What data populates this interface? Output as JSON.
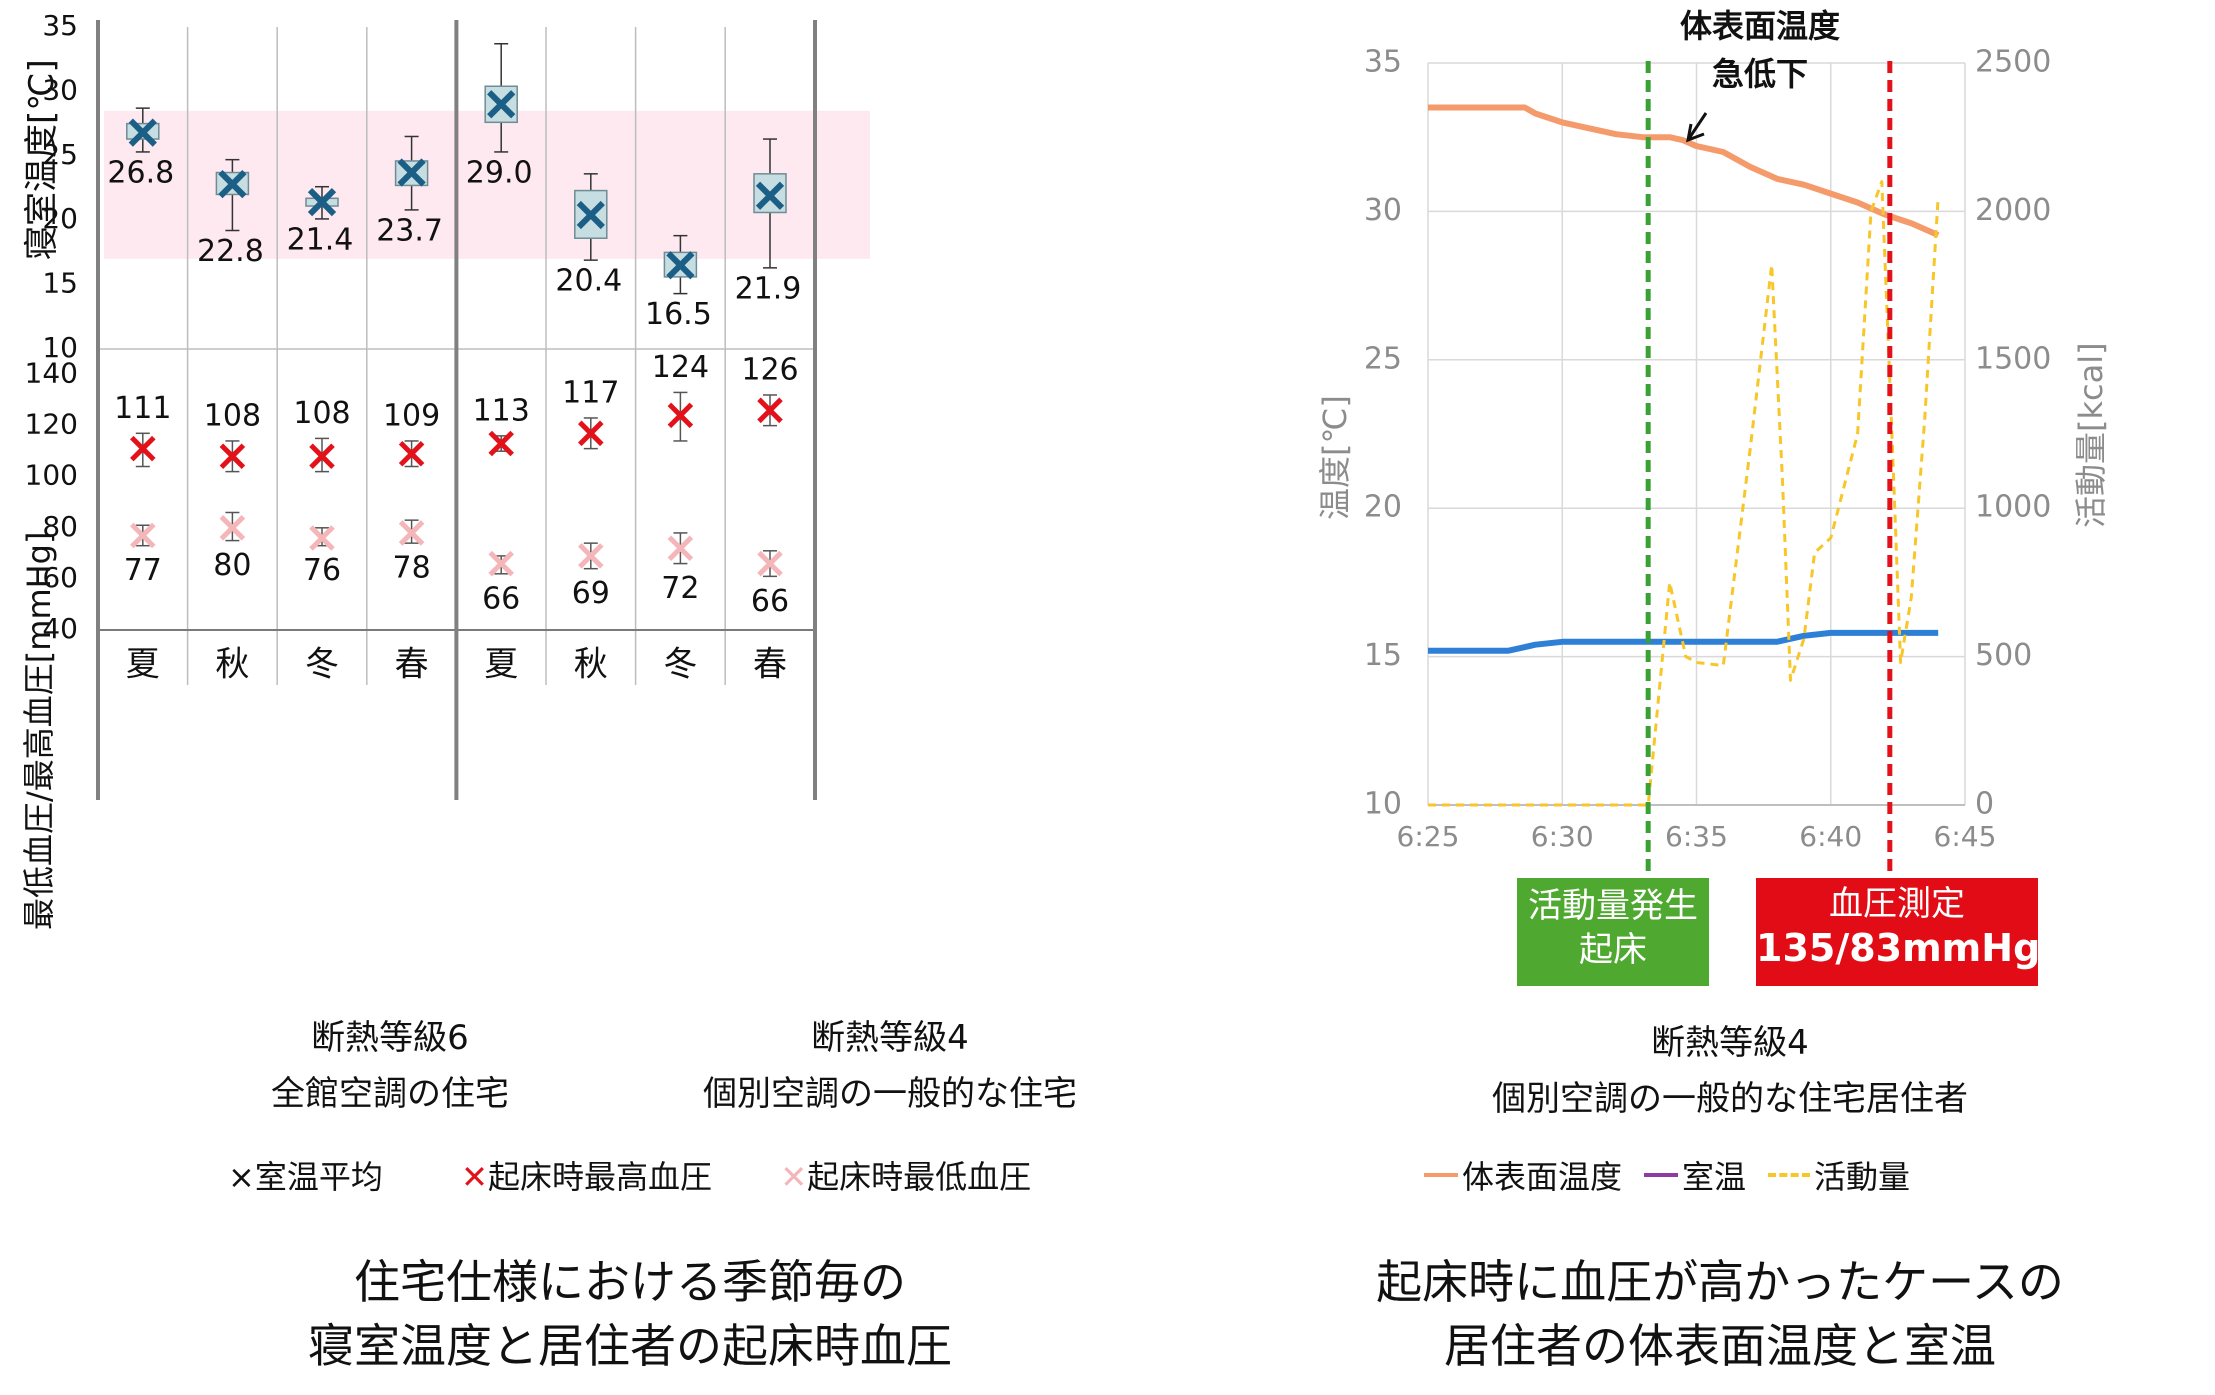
{
  "colors": {
    "comfort_band": "#fde9ef",
    "box_fill": "#c6dde2",
    "box_edge": "#6f8c95",
    "room_avg_mark": "#1c5f86",
    "systolic_mark": "#e3121a",
    "diastolic_mark": "#f4b6b8",
    "grid": "#bdbdbd",
    "panel_divider": "#808080",
    "surface_temp": "#f59a6a",
    "room_temp": "#2e7fd6",
    "activity": "#f7c629",
    "wake_line": "#3aa235",
    "bp_line": "#e3121a",
    "wake_badge": "#4fa930",
    "bp_badge": "#e10c16",
    "legend_room": "#8e3ca3"
  },
  "left": {
    "upper_ylabel": "寝室温度[℃]",
    "lower_ylabel": "最低血圧/最高血圧[mmHg]",
    "groups": [
      "断熱等級6\n全館空調の住宅",
      "断熱等級4\n個別空調の一般的な住宅"
    ],
    "legend": [
      "×室温平均",
      "起床時最高血圧",
      "起床時最低血圧"
    ],
    "legend_mark": "✕",
    "caption": "住宅仕様における季節毎の\n寝室温度と居住者の起床時血圧"
  },
  "right": {
    "annotation": "体表面温度\n急低下",
    "ylabel_left": "温度[℃]",
    "ylabel_right": "活動量[kcal]",
    "wake_badge": "活動量発生\n起床",
    "bp_badge_title": "血圧測定",
    "bp_badge_value": "135/83mmHg",
    "group": "断熱等級4\n個別空調の一般的な住宅居住者",
    "legend": [
      "体表面温度",
      "室温",
      "活動量"
    ],
    "caption": "起床時に血圧が高かったケースの\n居住者の体表面温度と室温"
  },
  "chart_data": [
    {
      "type": "box",
      "categories": [
        "夏",
        "秋",
        "冬",
        "春",
        "夏",
        "秋",
        "冬",
        "春"
      ],
      "ylabel": "寝室温度[℃]",
      "ylim": [
        10,
        35
      ],
      "yticks": [
        10,
        15,
        20,
        25,
        30,
        35
      ],
      "comfort_band": [
        17,
        28.5
      ],
      "series": [
        {
          "name": "室温平均",
          "mean": [
            26.8,
            22.8,
            21.4,
            23.7,
            29.0,
            20.4,
            16.5,
            21.9
          ],
          "q1": [
            26.3,
            22.0,
            21.1,
            22.7,
            27.6,
            18.6,
            15.6,
            20.6
          ],
          "q3": [
            27.5,
            23.7,
            21.7,
            24.6,
            30.4,
            22.3,
            17.5,
            23.6
          ],
          "min": [
            25.3,
            19.2,
            20.1,
            20.8,
            25.3,
            16.9,
            14.3,
            16.3
          ],
          "max": [
            28.7,
            24.7,
            22.6,
            26.5,
            33.7,
            23.6,
            18.8,
            26.3
          ]
        }
      ]
    },
    {
      "type": "scatter",
      "categories": [
        "夏",
        "秋",
        "冬",
        "春",
        "夏",
        "秋",
        "冬",
        "春"
      ],
      "ylabel": "最低血圧/最高血圧[mmHg]",
      "ylim": [
        40,
        150
      ],
      "yticks": [
        40,
        60,
        80,
        100,
        120,
        140
      ],
      "series": [
        {
          "name": "起床時最高血圧",
          "values": [
            111,
            108,
            108,
            109,
            113,
            117,
            124,
            126
          ],
          "err_low": [
            104,
            102,
            102,
            104,
            110,
            111,
            114,
            120
          ],
          "err_high": [
            117,
            114,
            115,
            114,
            116,
            123,
            133,
            132
          ]
        },
        {
          "name": "起床時最低血圧",
          "values": [
            77,
            80,
            76,
            78,
            66,
            69,
            72,
            66
          ],
          "err_low": [
            73,
            75,
            73,
            74,
            62,
            64,
            66,
            61
          ],
          "err_high": [
            81,
            86,
            80,
            83,
            69,
            74,
            78,
            71
          ]
        }
      ],
      "groups": [
        "断熱等級6 全館空調の住宅",
        "断熱等級4 個別空調の一般的な住宅"
      ]
    },
    {
      "type": "line",
      "xlabel": "",
      "xticks": [
        "6:25",
        "6:30",
        "6:35",
        "6:40",
        "6:45"
      ],
      "xlim": [
        "6:25",
        "6:45"
      ],
      "ylabel": "温度[℃]",
      "ylim": [
        10,
        35
      ],
      "yticks": [
        10,
        15,
        20,
        25,
        30,
        35
      ],
      "y2label": "活動量[kcal]",
      "y2lim": [
        0,
        2500
      ],
      "y2ticks": [
        0,
        500,
        1000,
        1500,
        2000,
        2500
      ],
      "series": [
        {
          "name": "体表面温度",
          "axis": "left",
          "x": [
            "6:25",
            "6:26",
            "6:27",
            "6:28",
            "6:28.6",
            "6:29",
            "6:30",
            "6:31",
            "6:32",
            "6:33",
            "6:34",
            "6:34.5",
            "6:35",
            "6:36",
            "6:37",
            "6:38",
            "6:39",
            "6:40",
            "6:41",
            "6:42",
            "6:43",
            "6:44"
          ],
          "y": [
            33.5,
            33.5,
            33.5,
            33.5,
            33.5,
            33.3,
            33.0,
            32.8,
            32.6,
            32.5,
            32.5,
            32.4,
            32.2,
            32.0,
            31.5,
            31.1,
            30.9,
            30.6,
            30.3,
            29.9,
            29.6,
            29.2
          ]
        },
        {
          "name": "室温",
          "axis": "left",
          "x": [
            "6:25",
            "6:26",
            "6:27",
            "6:28",
            "6:29",
            "6:30",
            "6:31",
            "6:32",
            "6:33",
            "6:34",
            "6:35",
            "6:36",
            "6:37",
            "6:38",
            "6:39",
            "6:40",
            "6:41",
            "6:42",
            "6:43",
            "6:44"
          ],
          "y": [
            15.2,
            15.2,
            15.2,
            15.2,
            15.4,
            15.5,
            15.5,
            15.5,
            15.5,
            15.5,
            15.5,
            15.5,
            15.5,
            15.5,
            15.7,
            15.8,
            15.8,
            15.8,
            15.8,
            15.8
          ]
        },
        {
          "name": "活動量",
          "axis": "right",
          "x": [
            "6:25",
            "6:30",
            "6:33.2",
            "6:34",
            "6:34.6",
            "6:35",
            "6:36",
            "6:37",
            "6:37.8",
            "6:38.2",
            "6:38.5",
            "6:39",
            "6:39.4",
            "6:40",
            "6:41",
            "6:41.5",
            "6:41.9",
            "6:42.3",
            "6:42.6",
            "6:43",
            "6:43.5",
            "6:44"
          ],
          "y": [
            0,
            0,
            0,
            750,
            500,
            480,
            470,
            1200,
            1820,
            1100,
            420,
            560,
            850,
            900,
            1250,
            2000,
            2100,
            1200,
            480,
            700,
            1300,
            2050
          ]
        }
      ],
      "markers": [
        {
          "x": "6:33.2",
          "label": "活動量発生 起床"
        },
        {
          "x": "6:42.2",
          "label": "血圧測定 135/83mmHg"
        }
      ]
    }
  ]
}
